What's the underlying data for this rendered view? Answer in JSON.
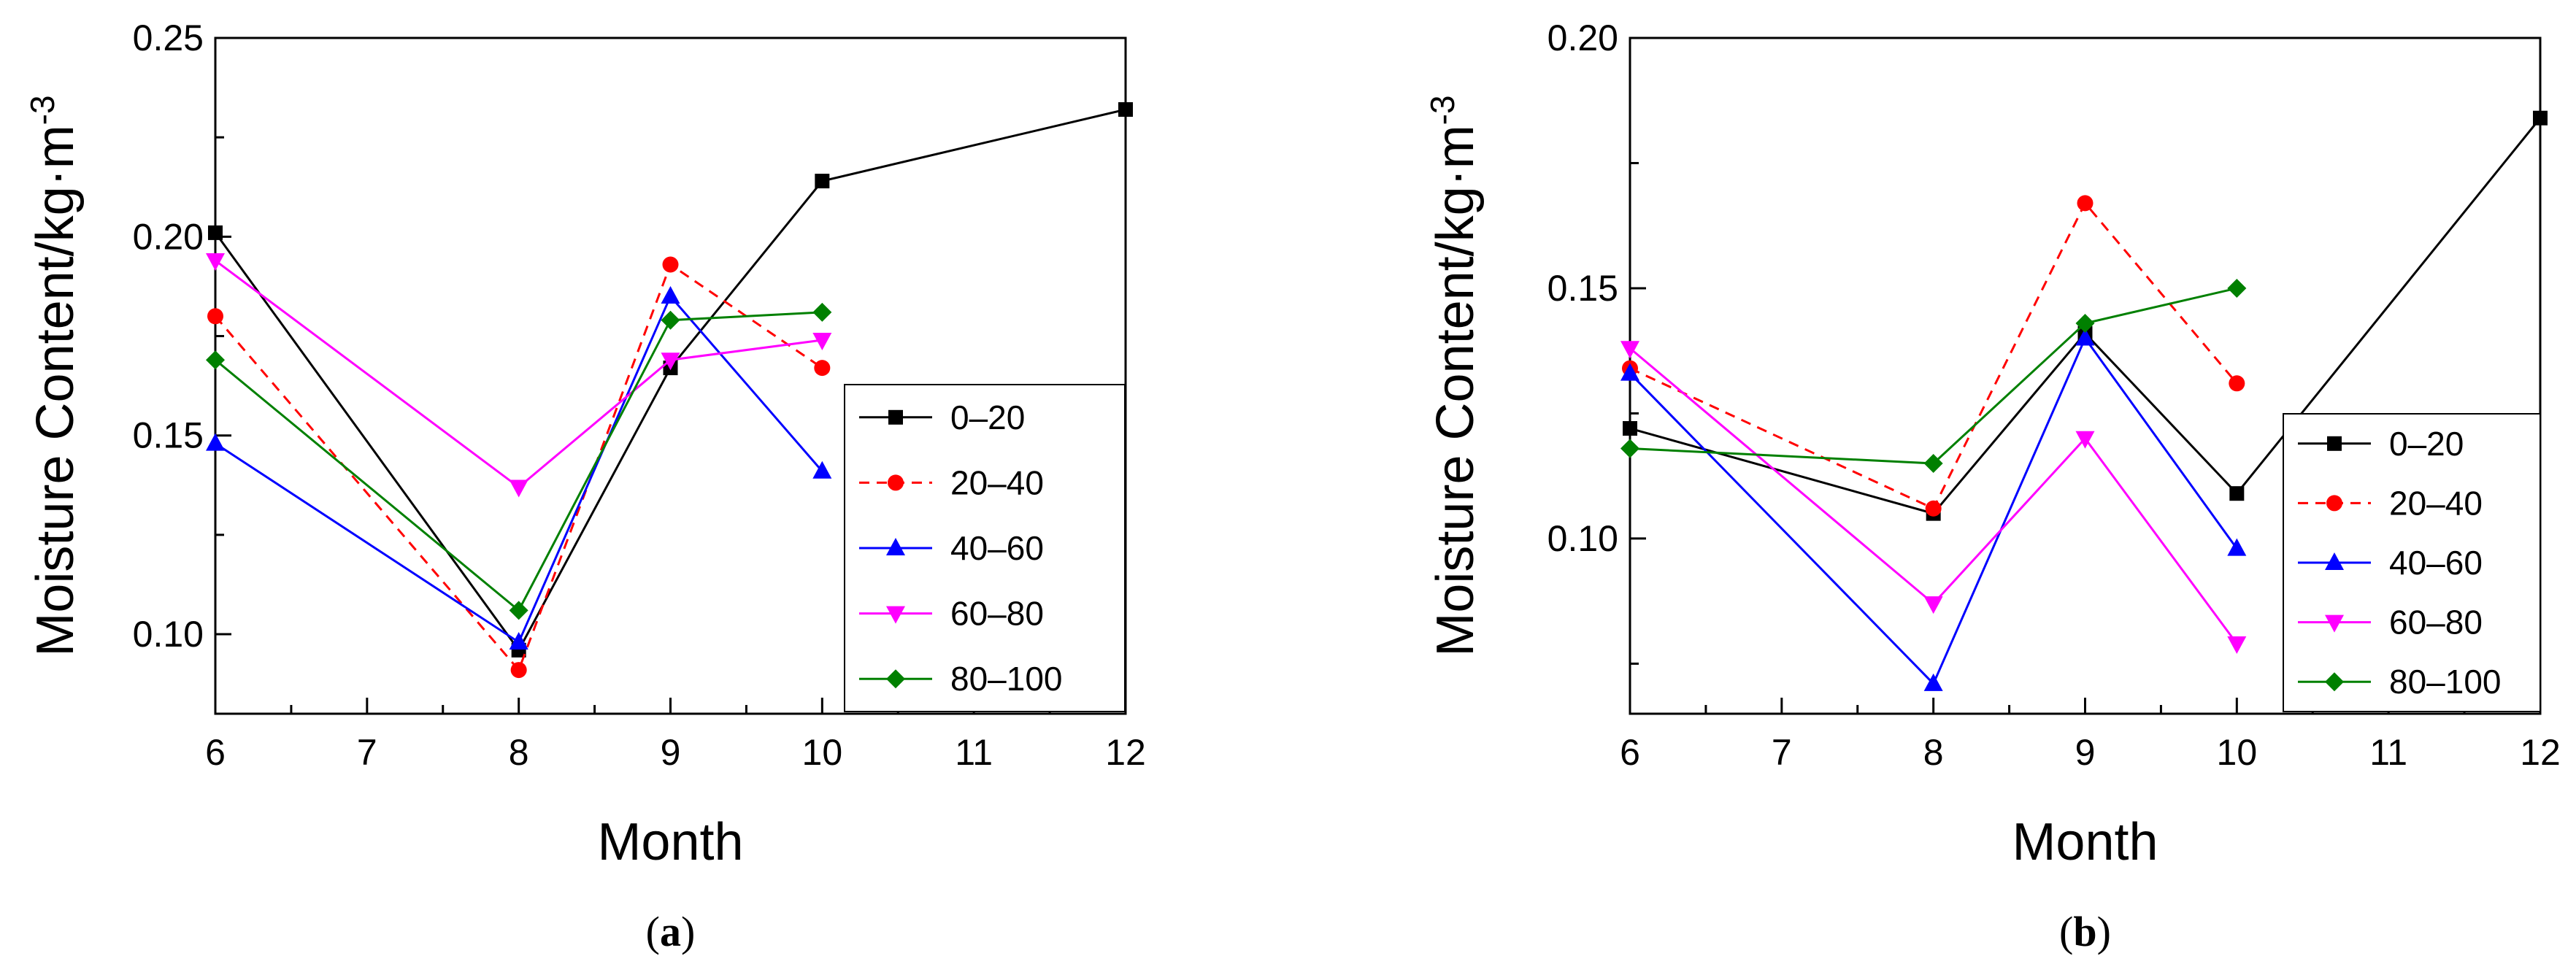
{
  "colors": {
    "0-20": "#000000",
    "20-40": "#ff0000",
    "40-60": "#0000ff",
    "60-80": "#ff00ff",
    "80-100": "#008000"
  },
  "chart_data": [
    {
      "id": "a",
      "type": "line",
      "panel_label": {
        "open": "(",
        "letter": "a",
        "close": ")"
      },
      "xlabel": "Month",
      "ylabel": "Moisture Content/kg·m",
      "ylabel_sup": "-3",
      "xlim": [
        6,
        12
      ],
      "ylim": [
        0.08,
        0.25
      ],
      "xticks": [
        6,
        7,
        8,
        9,
        10,
        11,
        12
      ],
      "yticks": [
        0.1,
        0.15,
        0.2,
        0.25
      ],
      "ytick_labels": [
        "0.10",
        "0.15",
        "0.20",
        "0.25"
      ],
      "legend_position": "center-right",
      "series": [
        {
          "name": "0–20",
          "key": "0-20",
          "marker": "square",
          "dashed": false,
          "x": [
            6,
            8,
            9,
            10,
            12
          ],
          "y": [
            0.201,
            0.096,
            0.167,
            0.214,
            0.232
          ]
        },
        {
          "name": "20–40",
          "key": "20-40",
          "marker": "circle",
          "dashed": true,
          "x": [
            6,
            8,
            9,
            10
          ],
          "y": [
            0.18,
            0.091,
            0.193,
            0.167
          ]
        },
        {
          "name": "40–60",
          "key": "40-60",
          "marker": "triangle-up",
          "dashed": false,
          "x": [
            6,
            8,
            9,
            10
          ],
          "y": [
            0.148,
            0.098,
            0.185,
            0.141
          ]
        },
        {
          "name": "60–80",
          "key": "60-80",
          "marker": "triangle-down",
          "dashed": false,
          "x": [
            6,
            8,
            9,
            10
          ],
          "y": [
            0.194,
            0.137,
            0.169,
            0.174
          ]
        },
        {
          "name": "80–100",
          "key": "80-100",
          "marker": "diamond",
          "dashed": false,
          "x": [
            6,
            8,
            9,
            10
          ],
          "y": [
            0.169,
            0.106,
            0.179,
            0.181
          ]
        }
      ]
    },
    {
      "id": "b",
      "type": "line",
      "panel_label": {
        "open": "(",
        "letter": "b",
        "close": ")"
      },
      "xlabel": "Month",
      "ylabel": "Moisture Content/kg·m",
      "ylabel_sup": "-3",
      "xlim": [
        6,
        12
      ],
      "ylim": [
        0.065,
        0.2
      ],
      "xticks": [
        6,
        7,
        8,
        9,
        10,
        11,
        12
      ],
      "yticks": [
        0.1,
        0.15,
        0.2
      ],
      "ytick_labels": [
        "0.10",
        "0.15",
        "0.20"
      ],
      "legend_position": "bottom-right",
      "series": [
        {
          "name": "0–20",
          "key": "0-20",
          "marker": "square",
          "dashed": false,
          "x": [
            6,
            8,
            9,
            10,
            12
          ],
          "y": [
            0.122,
            0.105,
            0.141,
            0.109,
            0.184
          ]
        },
        {
          "name": "20–40",
          "key": "20-40",
          "marker": "circle",
          "dashed": true,
          "x": [
            6,
            8,
            9,
            10
          ],
          "y": [
            0.134,
            0.106,
            0.167,
            0.131
          ]
        },
        {
          "name": "40–60",
          "key": "40-60",
          "marker": "triangle-up",
          "dashed": false,
          "x": [
            6,
            8,
            9,
            10
          ],
          "y": [
            0.133,
            0.071,
            0.14,
            0.098
          ]
        },
        {
          "name": "60–80",
          "key": "60-80",
          "marker": "triangle-down",
          "dashed": false,
          "x": [
            6,
            8,
            9,
            10
          ],
          "y": [
            0.138,
            0.087,
            0.12,
            0.079
          ]
        },
        {
          "name": "80–100",
          "key": "80-100",
          "marker": "diamond",
          "dashed": false,
          "x": [
            6,
            8,
            9,
            10
          ],
          "y": [
            0.118,
            0.115,
            0.143,
            0.15
          ]
        }
      ]
    }
  ]
}
